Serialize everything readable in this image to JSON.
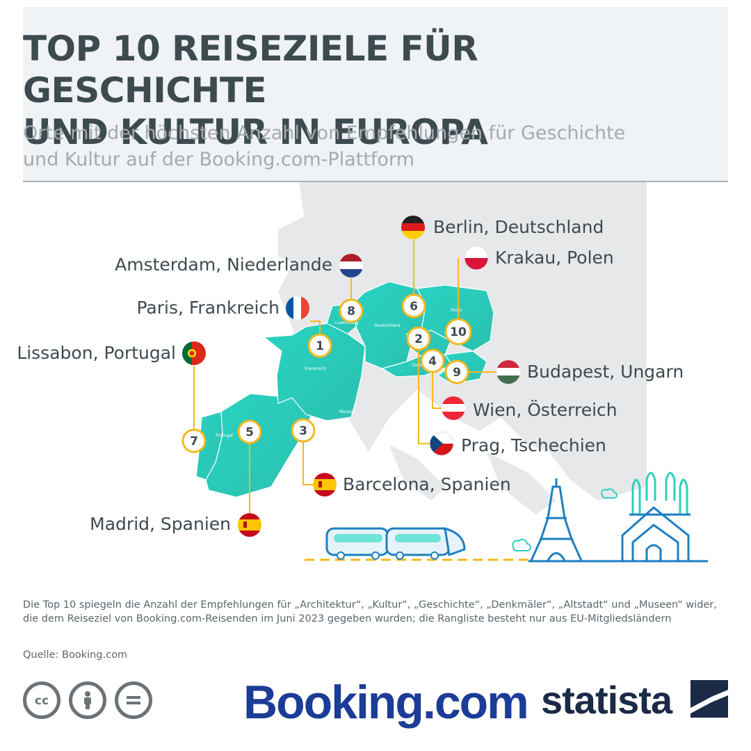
{
  "header": {
    "title_line1": "TOP 10 REISEZIELE FÜR GESCHICHTE",
    "title_line2": "UND KULTUR IN EUROPA",
    "subtitle_line1": "Orte mit der höchsten Anzahl von Empfehlungen für Geschichte",
    "subtitle_line2": "und Kultur auf der Booking.com-Plattform"
  },
  "map": {
    "country_labels": {
      "frankreich": "Frankreich",
      "deutschland": "Deutschland",
      "polen": "Polen",
      "portugal": "Portugal",
      "monaco": "Monaco",
      "luxemburg": "Luxemburg",
      "oesterreich": "Österreich"
    },
    "destinations": [
      {
        "rank": "1",
        "label": "Paris, Frankreich",
        "flag": "france-flag"
      },
      {
        "rank": "2",
        "label": "Prag, Tschechien",
        "flag": "czechia-flag"
      },
      {
        "rank": "3",
        "label": "Barcelona, Spanien",
        "flag": "spain-flag"
      },
      {
        "rank": "4",
        "label": "Wien, Österreich",
        "flag": "austria-flag"
      },
      {
        "rank": "5",
        "label": "Madrid, Spanien",
        "flag": "spain-flag"
      },
      {
        "rank": "6",
        "label": "Berlin, Deutschland",
        "flag": "germany-flag"
      },
      {
        "rank": "7",
        "label": "Lissabon, Portugal",
        "flag": "portugal-flag"
      },
      {
        "rank": "8",
        "label": "Amsterdam, Niederlande",
        "flag": "netherlands-flag"
      },
      {
        "rank": "9",
        "label": "Budapest, Ungarn",
        "flag": "hungary-flag"
      },
      {
        "rank": "10",
        "label": "Krakau, Polen",
        "flag": "poland-flag"
      }
    ],
    "colors": {
      "highlight_region": "#2ccfbe",
      "background_land": "#e6e8ea",
      "connector": "#f5b81c",
      "marker_text": "#3d4a4f"
    }
  },
  "footnote": "Die Top 10 spiegeln die Anzahl der Empfehlungen für „Architektur“, „Kultur“, „Geschichte“, „Denkmäler“, „Altstadt“ und „Museen“ wider, die dem Reiseziel von Booking.com-Reisenden im Juni 2023 gegeben wurden; die Rangliste besteht nur aus EU-Mitgliedsländern",
  "source": "Quelle: Booking.com",
  "branding": {
    "partner": "Booking.com",
    "publisher": "statista"
  },
  "icons": [
    "cc-icon",
    "attribution-icon",
    "no-derivatives-icon",
    "train-icon",
    "eiffel-tower-icon",
    "sagrada-familia-icon",
    "cloud-icon"
  ]
}
